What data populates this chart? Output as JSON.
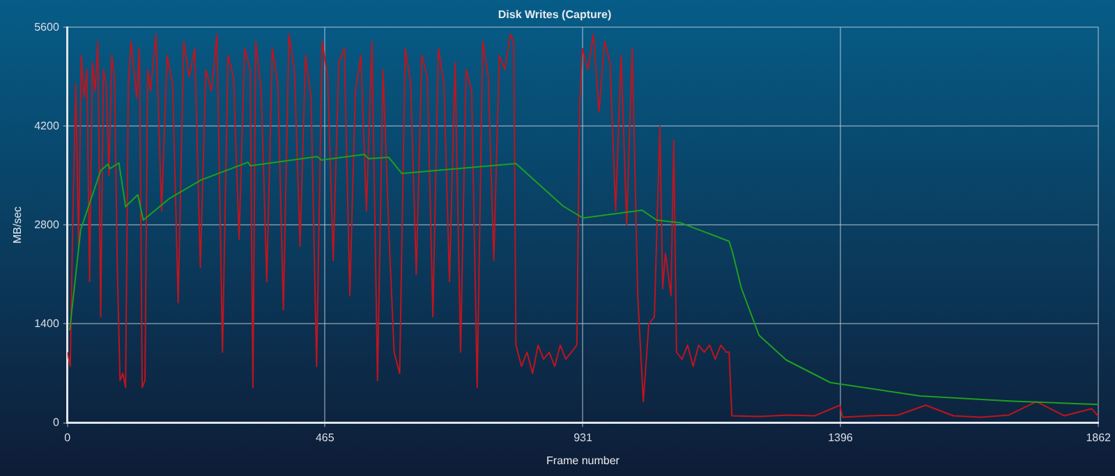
{
  "chart_data": {
    "type": "line",
    "title": "Disk Writes (Capture)",
    "xlabel": "Frame number",
    "ylabel": "MB/sec",
    "xlim": [
      0,
      1862
    ],
    "xticks": [
      0,
      465,
      931,
      1396,
      1862
    ],
    "ylim": [
      0,
      5600
    ],
    "yticks": [
      0,
      1400,
      2800,
      4200,
      5600
    ],
    "grid": true,
    "legend": false,
    "marker": "none",
    "line_style": "solid",
    "series": [
      {
        "color": "#c0141e",
        "x": [
          0,
          5,
          10,
          15,
          20,
          25,
          30,
          35,
          40,
          45,
          50,
          55,
          60,
          65,
          70,
          75,
          80,
          85,
          90,
          95,
          100,
          105,
          110,
          115,
          120,
          125,
          130,
          135,
          140,
          145,
          150,
          160,
          170,
          180,
          190,
          200,
          210,
          220,
          230,
          240,
          250,
          260,
          270,
          280,
          290,
          300,
          310,
          320,
          330,
          335,
          340,
          350,
          360,
          370,
          380,
          390,
          400,
          410,
          420,
          430,
          440,
          450,
          460,
          470,
          480,
          490,
          500,
          510,
          520,
          530,
          540,
          550,
          560,
          570,
          580,
          590,
          600,
          610,
          620,
          630,
          640,
          650,
          660,
          670,
          680,
          690,
          700,
          710,
          720,
          730,
          740,
          750,
          760,
          770,
          780,
          790,
          800,
          806,
          810,
          820,
          830,
          840,
          850,
          860,
          870,
          880,
          890,
          900,
          910,
          920,
          925,
          930,
          940,
          950,
          960,
          970,
          980,
          990,
          1000,
          1010,
          1020,
          1030,
          1040,
          1050,
          1060,
          1070,
          1075,
          1080,
          1090,
          1095,
          1100,
          1110,
          1120,
          1130,
          1140,
          1150,
          1160,
          1170,
          1180,
          1190,
          1195,
          1200,
          1250,
          1300,
          1350,
          1395,
          1400,
          1450,
          1500,
          1550,
          1600,
          1650,
          1700,
          1750,
          1800,
          1850,
          1862
        ],
        "values": [
          1000,
          800,
          3000,
          4800,
          2500,
          5200,
          4600,
          5000,
          2000,
          5100,
          4700,
          5400,
          1500,
          5000,
          4800,
          3500,
          5200,
          4900,
          2200,
          600,
          700,
          500,
          4800,
          5400,
          5000,
          4600,
          5300,
          500,
          600,
          5000,
          4700,
          5500,
          3000,
          5200,
          4800,
          1700,
          5400,
          4900,
          5300,
          2200,
          5000,
          4700,
          5500,
          1000,
          5200,
          4900,
          2600,
          5300,
          5000,
          500,
          5400,
          4700,
          2000,
          5300,
          4800,
          1600,
          5500,
          5000,
          2500,
          5200,
          4600,
          800,
          5400,
          4900,
          2300,
          5100,
          5300,
          1800,
          4700,
          5200,
          3000,
          5400,
          600,
          5000,
          2800,
          1000,
          700,
          5300,
          4800,
          2100,
          5200,
          4900,
          1500,
          5300,
          4800,
          2000,
          5100,
          1000,
          5000,
          4700,
          500,
          5400,
          4900,
          2300,
          5200,
          5000,
          5500,
          5400,
          1100,
          800,
          1000,
          700,
          1100,
          900,
          1000,
          800,
          1100,
          900,
          1000,
          1100,
          4500,
          5300,
          5000,
          5500,
          4400,
          5400,
          5100,
          3000,
          5200,
          2800,
          5300,
          1800,
          300,
          1400,
          1500,
          4200,
          1900,
          2400,
          1800,
          4000,
          1000,
          900,
          1100,
          800,
          1100,
          1000,
          1100,
          900,
          1100,
          1000,
          1000,
          100,
          90,
          110,
          100,
          250,
          80,
          100,
          110,
          250,
          100,
          80,
          110,
          300,
          100,
          200,
          90
        ]
      },
      {
        "color": "#1fa01f",
        "x": [
          4,
          24,
          60,
          73,
          77,
          93,
          105,
          127,
          137,
          185,
          242,
          326,
          330,
          451,
          459,
          536,
          544,
          580,
          604,
          810,
          895,
          931,
          1038,
          1064,
          1108,
          1195,
          1201,
          1217,
          1249,
          1298,
          1378,
          1540,
          1701,
          1862
        ],
        "values": [
          1310,
          2740,
          3570,
          3660,
          3600,
          3680,
          3060,
          3230,
          2870,
          3180,
          3440,
          3690,
          3640,
          3770,
          3720,
          3800,
          3740,
          3760,
          3530,
          3670,
          3070,
          2900,
          3010,
          2870,
          2830,
          2570,
          2420,
          1910,
          1240,
          890,
          570,
          380,
          310,
          260
        ]
      }
    ]
  }
}
